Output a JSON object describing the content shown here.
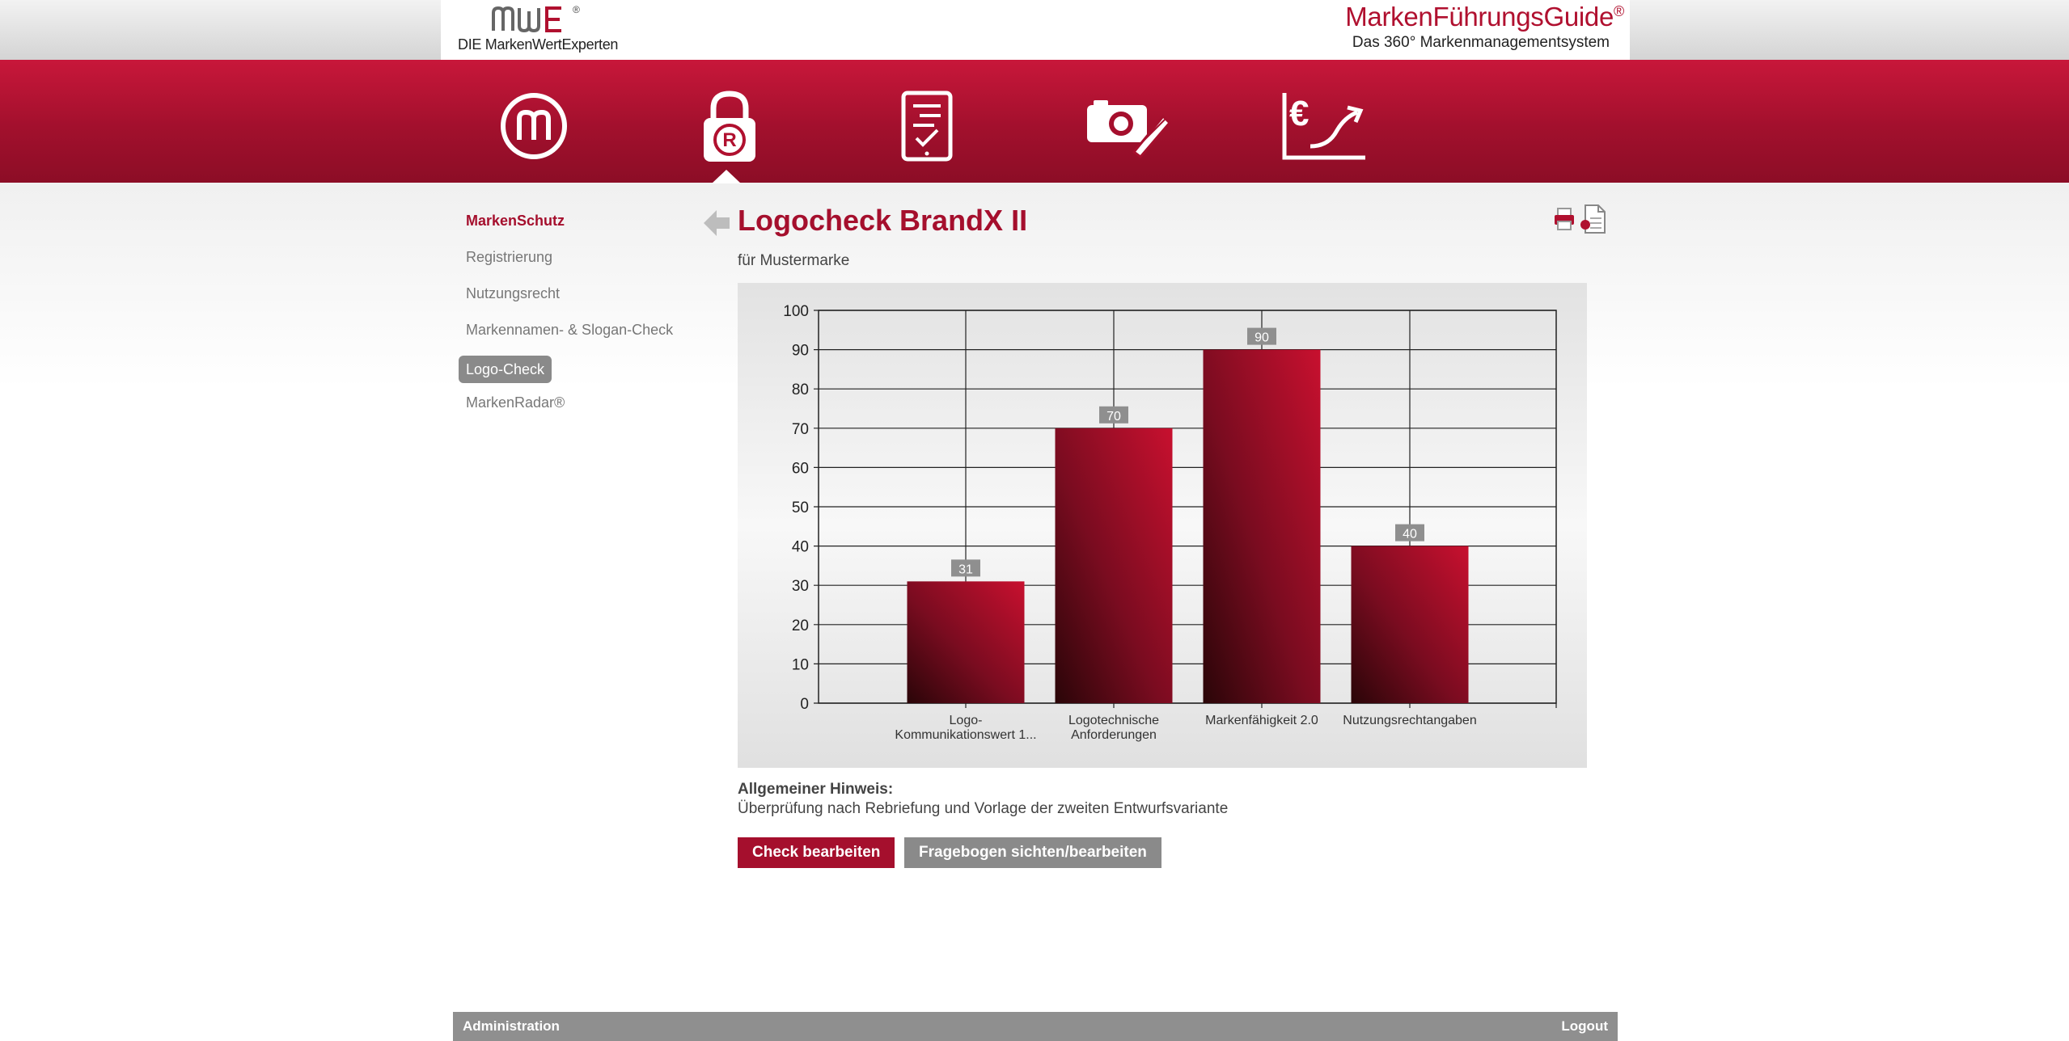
{
  "header": {
    "logo_text": "MWE",
    "logo_registered": "®",
    "logo_subtitle": "DIE MarkenWertExperten",
    "brand_title": "MarkenFührungsGuide",
    "brand_registered": "®",
    "brand_subtitle": "Das 360° Markenmanagementsystem"
  },
  "nav": [
    {
      "icon": "brand-m-icon"
    },
    {
      "icon": "lock-registered-icon",
      "active": true
    },
    {
      "icon": "tablet-checklist-icon"
    },
    {
      "icon": "camera-pencil-icon"
    },
    {
      "icon": "euro-chart-icon"
    }
  ],
  "sidebar": {
    "heading": "MarkenSchutz",
    "items": [
      {
        "label": "Registrierung"
      },
      {
        "label": "Nutzungsrecht"
      },
      {
        "label": "Markennamen- & Slogan-Check"
      },
      {
        "label": "Logo-Check",
        "active": true
      },
      {
        "label": "MarkenRadar®"
      }
    ]
  },
  "main": {
    "title": "Logocheck BrandX II",
    "subtitle": "für Mustermarke",
    "hint_label": "Allgemeiner Hinweis:",
    "hint_text": "Überprüfung nach Rebriefung und Vorlage der zweiten Entwurfsvariante",
    "buttons": {
      "edit_check": "Check bearbeiten",
      "view_questionnaire": "Fragebogen sichten/bearbeiten"
    }
  },
  "chart_data": {
    "type": "bar",
    "categories": [
      "Logo-\nKommunikationswert 1...",
      "Logotechnische\nAnforderungen",
      "Markenfähigkeit 2.0",
      "Nutzungsrechtangaben"
    ],
    "values": [
      31,
      70,
      90,
      40
    ],
    "ylim": [
      0,
      100
    ],
    "yticks": [
      0,
      10,
      20,
      30,
      40,
      50,
      60,
      70,
      80,
      90,
      100
    ],
    "grid": true,
    "bar_color": "#b0102f"
  },
  "footer": {
    "left_link": "Administration",
    "right_link": "Logout"
  },
  "colors": {
    "accent": "#a50f2d",
    "grey": "#8a8a8a"
  }
}
